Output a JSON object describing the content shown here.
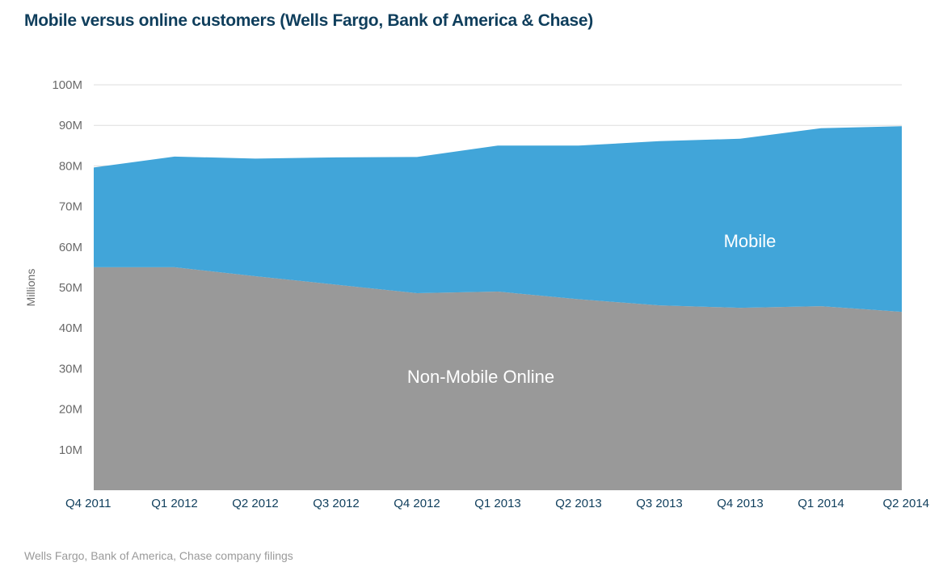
{
  "chart_data": {
    "type": "area",
    "stacked": true,
    "title": "Mobile versus online customers (Wells Fargo, Bank of America & Chase)",
    "source": "Wells Fargo, Bank of America, Chase company filings",
    "ylabel": "Millions",
    "xlabel": "",
    "ylim": [
      0,
      100
    ],
    "yticks": [
      {
        "value": 10,
        "label": "10M"
      },
      {
        "value": 20,
        "label": "20M"
      },
      {
        "value": 30,
        "label": "30M"
      },
      {
        "value": 40,
        "label": "40M"
      },
      {
        "value": 50,
        "label": "50M"
      },
      {
        "value": 60,
        "label": "60M"
      },
      {
        "value": 70,
        "label": "70M"
      },
      {
        "value": 80,
        "label": "80M"
      },
      {
        "value": 90,
        "label": "90M"
      },
      {
        "value": 100,
        "label": "100M"
      }
    ],
    "grid": true,
    "categories": [
      "Q4 2011",
      "Q1 2012",
      "Q2 2012",
      "Q3 2012",
      "Q4 2012",
      "Q1 2013",
      "Q2 2013",
      "Q3 2013",
      "Q4 2013",
      "Q1 2014",
      "Q2 2014"
    ],
    "series": [
      {
        "name": "Non-Mobile Online",
        "color": "#999999",
        "values": [
          55.0,
          55.0,
          52.8,
          50.7,
          48.6,
          49.0,
          47.1,
          45.6,
          45.0,
          45.4,
          44.0
        ]
      },
      {
        "name": "Mobile",
        "color": "#41a5d9",
        "values": [
          24.6,
          27.3,
          29.0,
          31.4,
          33.6,
          36.0,
          37.9,
          40.5,
          41.7,
          43.9,
          45.8
        ]
      }
    ]
  }
}
